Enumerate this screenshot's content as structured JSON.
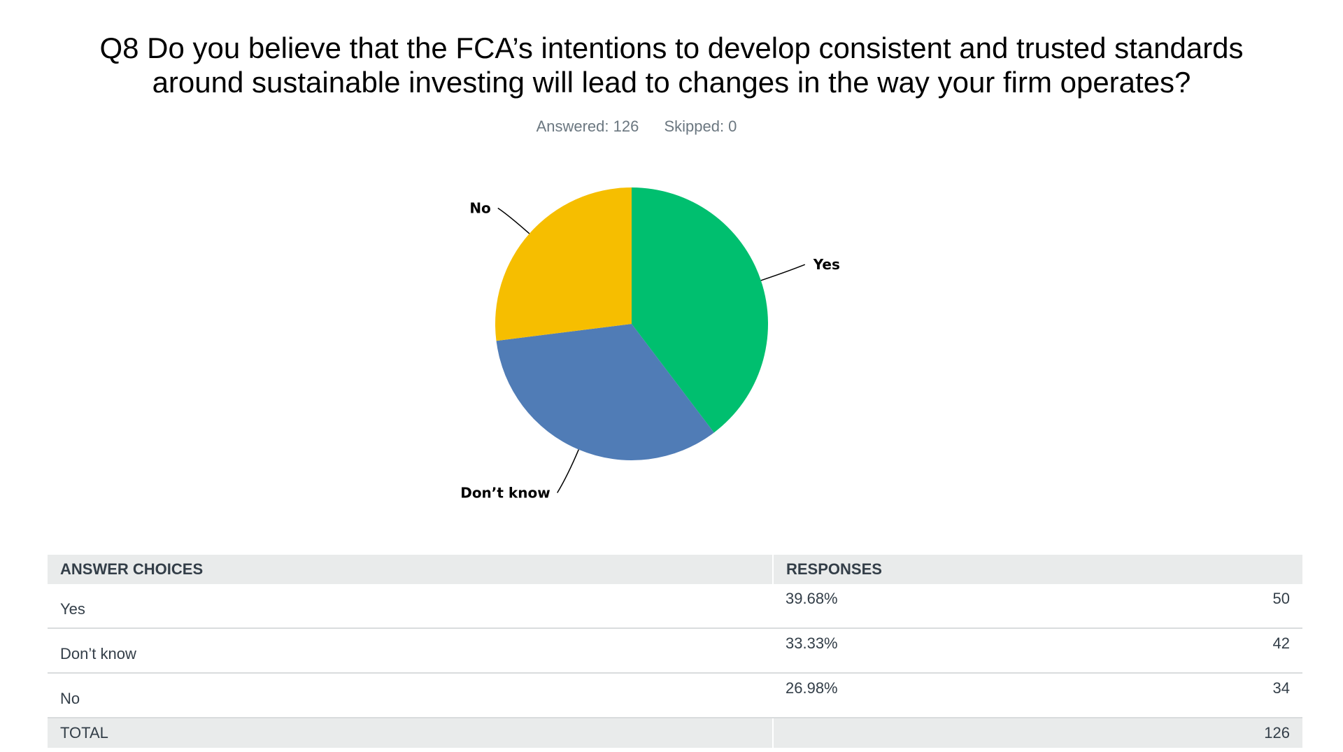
{
  "question": {
    "title": "Q8 Do you believe that the FCA’s intentions to develop consistent and trusted standards around sustainable investing will lead to changes in the way your firm operates?",
    "answered": "Answered: 126",
    "skipped": "Skipped: 0"
  },
  "chart_data": {
    "type": "pie",
    "categories": [
      "Yes",
      "Don’t know",
      "No"
    ],
    "values": [
      39.68,
      33.33,
      26.98
    ],
    "colors": [
      "#00bf6f",
      "#507cb6",
      "#f6be00"
    ]
  },
  "table": {
    "headers": [
      "ANSWER CHOICES",
      "RESPONSES"
    ],
    "rows": [
      {
        "choice": "Yes",
        "percent": "39.68%",
        "count": "50"
      },
      {
        "choice": "Don’t know",
        "percent": "33.33%",
        "count": "42"
      },
      {
        "choice": "No",
        "percent": "26.98%",
        "count": "34"
      }
    ],
    "total": {
      "label": "TOTAL",
      "count": "126"
    }
  }
}
